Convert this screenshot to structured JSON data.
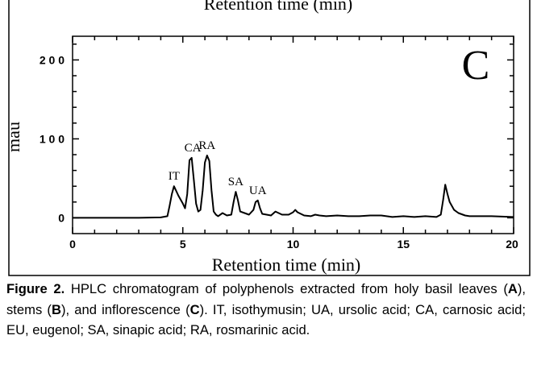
{
  "top_strip": {
    "clipped_axis_label": "Retention time (min)"
  },
  "chart_data": {
    "type": "line",
    "panel_label": "C",
    "xlabel": "Retention time (min)",
    "ylabel": "mau",
    "xlim": [
      0,
      20
    ],
    "ylim": [
      -20,
      230
    ],
    "x_ticks": [
      0,
      5,
      10,
      15,
      20
    ],
    "x_tick_labels": [
      "0",
      "5",
      "10",
      "15",
      "20"
    ],
    "y_ticks": [
      0,
      100,
      200
    ],
    "y_tick_labels": [
      "0",
      "1 0 0",
      "2 0 0"
    ],
    "series": [
      {
        "x": [
          0,
          2,
          3,
          4,
          4.3,
          4.4,
          4.5,
          4.6,
          4.8,
          5.0,
          5.1,
          5.2,
          5.3,
          5.4,
          5.5,
          5.6,
          5.7,
          5.8,
          5.9,
          6.0,
          6.1,
          6.2,
          6.3,
          6.4,
          6.5,
          6.6,
          6.8,
          7.0,
          7.2,
          7.3,
          7.4,
          7.5,
          7.6,
          7.8,
          8.0,
          8.2,
          8.3,
          8.4,
          8.5,
          8.6,
          8.8,
          9.0,
          9.2,
          9.5,
          9.8,
          10.0,
          10.1,
          10.2,
          10.5,
          10.8,
          11.0,
          11.2,
          11.5,
          12.0,
          12.5,
          13.0,
          13.5,
          14.0,
          14.5,
          15.0,
          15.5,
          16.0,
          16.5,
          16.7,
          16.8,
          16.9,
          17.0,
          17.1,
          17.3,
          17.5,
          17.8,
          18.0,
          19.0,
          20.0
        ],
        "y": [
          0,
          0,
          0,
          0.5,
          2,
          15,
          30,
          40,
          28,
          18,
          12,
          30,
          73,
          76,
          48,
          18,
          8,
          10,
          35,
          70,
          79,
          72,
          35,
          8,
          4,
          2,
          6,
          3,
          4,
          20,
          33,
          22,
          8,
          6,
          4,
          10,
          20,
          22,
          12,
          5,
          4,
          3,
          8,
          4,
          4,
          7,
          10,
          7,
          3,
          2,
          4,
          3,
          2,
          3,
          2,
          2,
          3,
          3,
          1,
          2,
          1,
          2,
          1,
          4,
          22,
          42,
          30,
          20,
          10,
          6,
          3,
          2,
          2,
          1
        ]
      }
    ],
    "peak_labels": [
      {
        "text": "IT",
        "x": 4.6,
        "y": 40
      },
      {
        "text": "CA",
        "x": 5.45,
        "y": 76
      },
      {
        "text": "RA",
        "x": 6.1,
        "y": 79
      },
      {
        "text": "SA",
        "x": 7.4,
        "y": 33
      },
      {
        "text": "UA",
        "x": 8.4,
        "y": 22
      }
    ]
  },
  "caption": {
    "figure_label": "Figure 2.",
    "part1": "  HPLC chromatogram of polyphenols extracted from holy basil leaves (",
    "a": "A",
    "part2": "), stems (",
    "b": "B",
    "part3": "), and inflorescence (",
    "c": "C",
    "part4": "). IT, isothymusin; UA, ursolic acid; CA, carnosic acid; EU, eugenol; SA, sinapic acid; RA, rosmarinic acid."
  }
}
